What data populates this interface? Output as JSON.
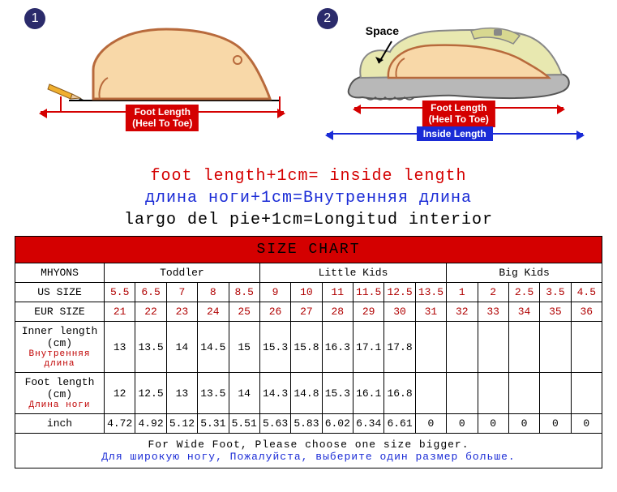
{
  "diagram1": {
    "number": "1",
    "measure_label_line1": "Foot Length",
    "measure_label_line2": "(Heel To Toe)"
  },
  "diagram2": {
    "number": "2",
    "space_label": "Space",
    "measure_label_line1": "Foot Length",
    "measure_label_line2": "(Heel To Toe)",
    "inside_label": "Inside Length"
  },
  "formulas": {
    "en": "foot length+1cm= inside length",
    "ru": "длина ноги+1cm=Внутренняя длина",
    "es": "largo del pie+1cm=Longitud interior"
  },
  "chart": {
    "title": "SIZE CHART",
    "brand": "MHYONS",
    "groups": [
      "Toddler",
      "Little Kids",
      "Big Kids"
    ],
    "group_spans": [
      5,
      6,
      5
    ],
    "headers": {
      "us": "US SIZE",
      "eur": "EUR SIZE",
      "inner": "Inner length (cm)",
      "inner_ru": "Внутренняя длина",
      "foot": "Foot length (cm)",
      "foot_ru": "Длина ноги",
      "inch": "inch"
    },
    "us": [
      "5.5",
      "6.5",
      "7",
      "8",
      "8.5",
      "9",
      "10",
      "11",
      "11.5",
      "12.5",
      "13.5",
      "1",
      "2",
      "2.5",
      "3.5",
      "4.5"
    ],
    "eur": [
      "21",
      "22",
      "23",
      "24",
      "25",
      "26",
      "27",
      "28",
      "29",
      "30",
      "31",
      "32",
      "33",
      "34",
      "35",
      "36"
    ],
    "inner": [
      "13",
      "13.5",
      "14",
      "14.5",
      "15",
      "15.3",
      "15.8",
      "16.3",
      "17.1",
      "17.8",
      "",
      "",
      "",
      "",
      "",
      ""
    ],
    "foot": [
      "12",
      "12.5",
      "13",
      "13.5",
      "14",
      "14.3",
      "14.8",
      "15.3",
      "16.1",
      "16.8",
      "",
      "",
      "",
      "",
      "",
      ""
    ],
    "inch": [
      "4.72",
      "4.92",
      "5.12",
      "5.31",
      "5.51",
      "5.63",
      "5.83",
      "6.02",
      "6.34",
      "6.61",
      "0",
      "0",
      "0",
      "0",
      "0",
      "0"
    ],
    "note_en": "For Wide Foot, Please choose one size bigger.",
    "note_ru": "Для широкую ногу, Пожалуйста, выберите один размер больше."
  },
  "colors": {
    "red": "#d40000",
    "blue": "#1a2bd6",
    "foot_fill": "#f8d8a8",
    "foot_stroke": "#b86a3c",
    "pencil_body": "#f0b030",
    "pencil_tip": "#e8c8a0",
    "shoe_fill": "#e8e8b0",
    "shoe_sole": "#888888"
  }
}
